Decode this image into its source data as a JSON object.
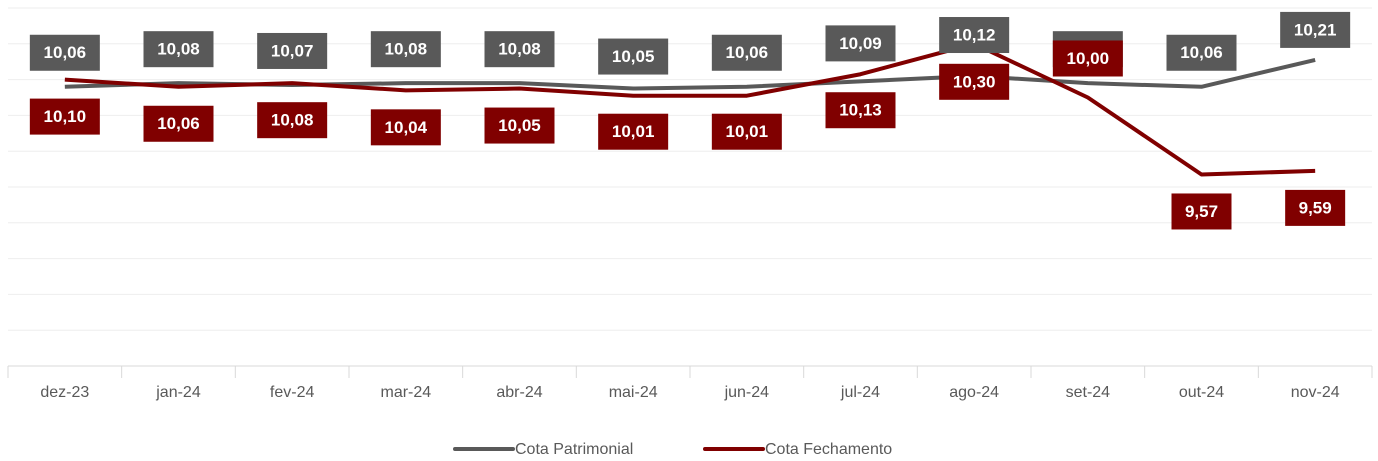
{
  "chart_data": {
    "type": "line",
    "categories": [
      "dez-23",
      "jan-24",
      "fev-24",
      "mar-24",
      "abr-24",
      "mai-24",
      "jun-24",
      "jul-24",
      "ago-24",
      "set-24",
      "out-24",
      "nov-24"
    ],
    "series": [
      {
        "name": "Cota Patrimonial",
        "color": "#595959",
        "values": [
          10.06,
          10.08,
          10.07,
          10.08,
          10.08,
          10.05,
          10.06,
          10.09,
          10.12,
          10.08,
          10.06,
          10.21
        ],
        "value_labels": [
          "10,06",
          "10,08",
          "10,07",
          "10,08",
          "10,08",
          "10,05",
          "10,06",
          "10,09",
          "10,12",
          "10,08",
          "10,06",
          "10,21"
        ]
      },
      {
        "name": "Cota Fechamento",
        "color": "#800000",
        "values": [
          10.1,
          10.06,
          10.08,
          10.04,
          10.05,
          10.01,
          10.01,
          10.13,
          10.3,
          10.0,
          9.57,
          9.59
        ],
        "value_labels": [
          "10,10",
          "10,06",
          "10,08",
          "10,04",
          "10,05",
          "10,01",
          "10,01",
          "10,13",
          "10,30",
          "10,00",
          "9,57",
          "9,59"
        ]
      }
    ],
    "ylim": [
      8.5,
      10.5
    ],
    "yticks": [
      8.5,
      8.7,
      8.9,
      9.1,
      9.3,
      9.5,
      9.7,
      9.9,
      10.1,
      10.3,
      10.5
    ],
    "grid": true,
    "legend": "bottom"
  }
}
